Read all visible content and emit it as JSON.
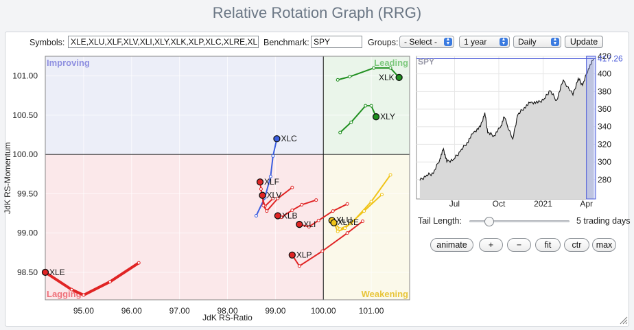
{
  "page": {
    "title": "Relative Rotation Graph (RRG)"
  },
  "controls": {
    "symbols_label": "Symbols:",
    "symbols_value": "XLE,XLU,XLF,XLV,XLI,XLY,XLK,XLP,XLC,XLRE,XLB",
    "benchmark_label": "Benchmark:",
    "benchmark_value": "SPY",
    "groups_label": "Groups:",
    "groups_value": "- Select -",
    "period_value": "1 year",
    "frequency_value": "Daily",
    "update_label": "Update"
  },
  "tail": {
    "label": "Tail Length:",
    "value_text": "5 trading days",
    "level": 0.16
  },
  "buttons": {
    "animate": "animate",
    "plus": "+",
    "minus": "−",
    "fit": "fit",
    "ctr": "ctr",
    "max": "max"
  },
  "colors": {
    "improving_bg": "#eceef8",
    "leading_bg": "#eaf5ea",
    "weakening_bg": "#fbf9ea",
    "lagging_bg": "#fbe8ea",
    "improving": "#8e8fe0",
    "leading": "#7ec87e",
    "weakening": "#e8c53a",
    "lagging": "#ef6f78",
    "red_tail": "#e02424",
    "green_tail": "#1f8f1f",
    "blue_tail": "#3a5de0",
    "yellow_tail": "#f0c419"
  },
  "chart_data": [
    {
      "type": "scatter",
      "subtype": "relative-rotation-graph",
      "xlabel": "JdK RS-Ratio",
      "ylabel": "JdK RS-Momentum",
      "xlim": [
        94.2,
        101.8
      ],
      "ylim": [
        98.15,
        101.25
      ],
      "xticks": [
        "95.00",
        "96.00",
        "97.00",
        "98.00",
        "99.00",
        "100.00",
        "101.00"
      ],
      "yticks": [
        "98.50",
        "99.00",
        "99.50",
        "100.00",
        "100.50",
        "101.00"
      ],
      "center": [
        100,
        100
      ],
      "quadrants": {
        "top_left": "Improving",
        "top_right": "Leading",
        "bottom_right": "Weakening",
        "bottom_left": "Lagging"
      },
      "series": [
        {
          "name": "XLE",
          "color": "#e02424",
          "tail": [
            [
              96.15,
              98.62
            ],
            [
              95.55,
              98.38
            ],
            [
              95.0,
              98.21
            ],
            [
              94.75,
              98.28
            ],
            [
              94.2,
              98.5
            ]
          ]
        },
        {
          "name": "XLK",
          "color": "#1f8f1f",
          "tail": [
            [
              100.3,
              100.95
            ],
            [
              100.55,
              100.99
            ],
            [
              101.05,
              101.1
            ],
            [
              101.4,
              101.1
            ],
            [
              101.58,
              100.98
            ]
          ]
        },
        {
          "name": "XLY",
          "color": "#1f8f1f",
          "tail": [
            [
              100.35,
              100.28
            ],
            [
              100.58,
              100.41
            ],
            [
              100.88,
              100.62
            ],
            [
              101.0,
              100.62
            ],
            [
              101.1,
              100.48
            ]
          ]
        },
        {
          "name": "XLC",
          "color": "#3a5de0",
          "tail": [
            [
              98.6,
              99.22
            ],
            [
              98.78,
              99.45
            ],
            [
              98.9,
              99.72
            ],
            [
              98.95,
              99.98
            ],
            [
              99.03,
              100.2
            ]
          ]
        },
        {
          "name": "XLF",
          "color": "#e02424",
          "tail": [
            [
              98.95,
              99.44
            ],
            [
              98.78,
              99.34
            ],
            [
              98.72,
              99.47
            ],
            [
              98.7,
              99.56
            ],
            [
              98.68,
              99.65
            ]
          ]
        },
        {
          "name": "XLV",
          "color": "#e02424",
          "tail": [
            [
              99.35,
              99.58
            ],
            [
              99.05,
              99.44
            ],
            [
              98.82,
              99.28
            ],
            [
              98.75,
              99.35
            ],
            [
              98.73,
              99.48
            ]
          ]
        },
        {
          "name": "XLB",
          "color": "#e02424",
          "tail": [
            [
              99.85,
              99.42
            ],
            [
              99.55,
              99.36
            ],
            [
              99.35,
              99.29
            ],
            [
              99.12,
              99.2
            ],
            [
              99.05,
              99.22
            ]
          ]
        },
        {
          "name": "XLI",
          "color": "#e02424",
          "tail": [
            [
              100.5,
              99.37
            ],
            [
              100.2,
              99.28
            ],
            [
              99.9,
              99.16
            ],
            [
              99.7,
              99.08
            ],
            [
              99.5,
              99.11
            ]
          ]
        },
        {
          "name": "XLP",
          "color": "#e02424",
          "tail": [
            [
              100.82,
              99.15
            ],
            [
              100.5,
              99.0
            ],
            [
              99.98,
              98.77
            ],
            [
              99.5,
              98.58
            ],
            [
              99.35,
              98.72
            ]
          ]
        },
        {
          "name": "XLU",
          "color": "#f0c419",
          "tail": [
            [
              101.4,
              99.74
            ],
            [
              101.0,
              99.4
            ],
            [
              100.58,
              99.12
            ],
            [
              100.35,
              99.05
            ],
            [
              100.18,
              99.16
            ]
          ]
        },
        {
          "name": "XLRE",
          "color": "#f0c419",
          "tail": [
            [
              101.22,
              99.49
            ],
            [
              100.85,
              99.28
            ],
            [
              100.45,
              99.06
            ],
            [
              100.3,
              99.02
            ],
            [
              100.22,
              99.13
            ]
          ]
        }
      ]
    },
    {
      "type": "area",
      "title": "SPY",
      "current_value_label": "417.26",
      "current_value": 417.26,
      "ylim": [
        258,
        420
      ],
      "yticks": [
        "280",
        "300",
        "320",
        "340",
        "360",
        "380",
        "400",
        "420"
      ],
      "xticks": [
        "Jul",
        "Oct",
        "2021",
        "Apr"
      ],
      "x": [
        "2020-04-20",
        "2020-05-04",
        "2020-05-18",
        "2020-06-01",
        "2020-06-08",
        "2020-06-15",
        "2020-06-29",
        "2020-07-13",
        "2020-07-27",
        "2020-08-10",
        "2020-08-24",
        "2020-09-02",
        "2020-09-08",
        "2020-09-21",
        "2020-10-05",
        "2020-10-12",
        "2020-10-30",
        "2020-11-09",
        "2020-11-23",
        "2020-12-07",
        "2020-12-21",
        "2021-01-04",
        "2021-01-15",
        "2021-01-29",
        "2021-02-12",
        "2021-03-04",
        "2021-03-15",
        "2021-03-24",
        "2021-04-05",
        "2021-04-16"
      ],
      "values": [
        279,
        285,
        287,
        304,
        315,
        300,
        303,
        312,
        322,
        334,
        340,
        356,
        333,
        330,
        340,
        351,
        326,
        353,
        362,
        368,
        367,
        372,
        381,
        370,
        393,
        376,
        395,
        387,
        406,
        417
      ]
    }
  ]
}
